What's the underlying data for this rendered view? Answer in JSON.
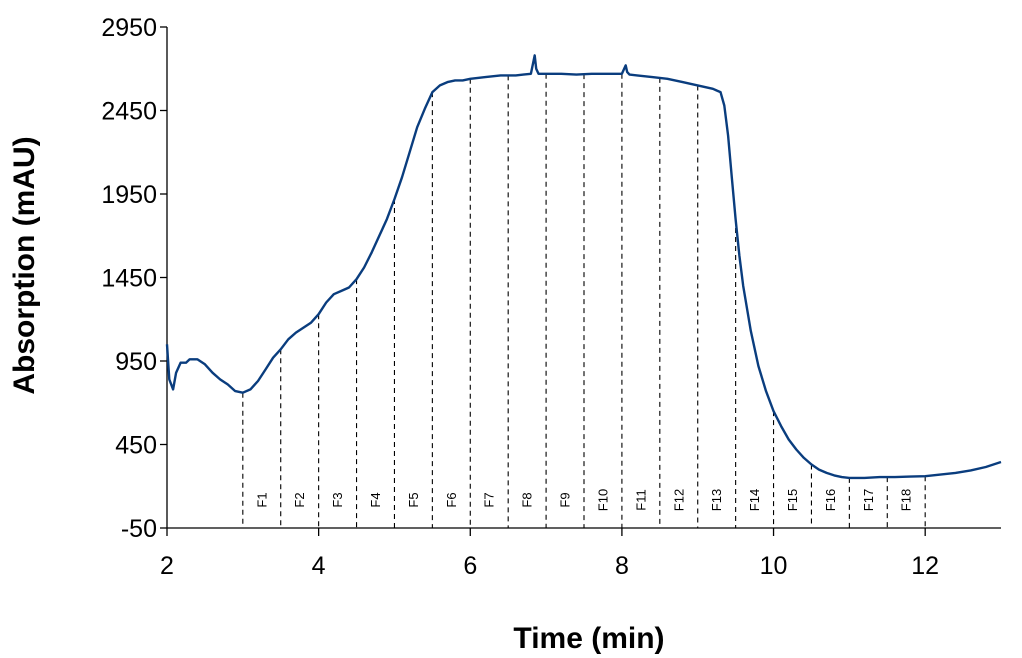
{
  "chart_data": {
    "type": "line",
    "title": "",
    "xlabel": "Time (min)",
    "ylabel": "Absorption (mAU)",
    "xlim": [
      2,
      13
    ],
    "ylim": [
      -50,
      2950
    ],
    "xticks": [
      2,
      4,
      6,
      8,
      10,
      12
    ],
    "yticks": [
      -50,
      450,
      950,
      1450,
      1950,
      2450,
      2950
    ],
    "grid": false,
    "color": "#0a3d7e",
    "series": [
      {
        "x": [
          2.0,
          2.03,
          2.08,
          2.12,
          2.18,
          2.25,
          2.3,
          2.4,
          2.5,
          2.6,
          2.7,
          2.8,
          2.9,
          3.0,
          3.1,
          3.2,
          3.3,
          3.4,
          3.5,
          3.6,
          3.7,
          3.8,
          3.9,
          4.0,
          4.1,
          4.2,
          4.3,
          4.4,
          4.5,
          4.6,
          4.7,
          4.8,
          4.9,
          5.0,
          5.1,
          5.2,
          5.3,
          5.4,
          5.5,
          5.6,
          5.7,
          5.8,
          5.9,
          6.0,
          6.2,
          6.4,
          6.5,
          6.6,
          6.7,
          6.8,
          6.85,
          6.87,
          6.9,
          7.0,
          7.2,
          7.4,
          7.6,
          7.8,
          8.0,
          8.05,
          8.07,
          8.1,
          8.2,
          8.4,
          8.6,
          8.8,
          9.0,
          9.2,
          9.25,
          9.3,
          9.35,
          9.4,
          9.45,
          9.5,
          9.55,
          9.6,
          9.7,
          9.8,
          9.9,
          10.0,
          10.1,
          10.2,
          10.3,
          10.4,
          10.5,
          10.6,
          10.7,
          10.8,
          10.9,
          11.0,
          11.2,
          11.4,
          11.6,
          11.8,
          12.0,
          12.2,
          12.4,
          12.6,
          12.8,
          13.0
        ],
        "y": [
          1050,
          840,
          780,
          880,
          940,
          940,
          960,
          960,
          930,
          880,
          840,
          810,
          770,
          760,
          780,
          830,
          900,
          970,
          1020,
          1080,
          1120,
          1150,
          1180,
          1230,
          1300,
          1350,
          1370,
          1390,
          1440,
          1510,
          1600,
          1700,
          1800,
          1920,
          2050,
          2200,
          2350,
          2460,
          2560,
          2600,
          2620,
          2630,
          2630,
          2640,
          2650,
          2660,
          2660,
          2660,
          2665,
          2670,
          2780,
          2700,
          2670,
          2670,
          2670,
          2665,
          2670,
          2670,
          2670,
          2720,
          2680,
          2665,
          2660,
          2650,
          2640,
          2620,
          2600,
          2580,
          2570,
          2560,
          2480,
          2300,
          2050,
          1800,
          1580,
          1400,
          1130,
          920,
          770,
          650,
          560,
          480,
          420,
          370,
          330,
          300,
          280,
          265,
          255,
          250,
          250,
          255,
          255,
          258,
          260,
          270,
          280,
          295,
          315,
          345
        ]
      }
    ],
    "fractions": {
      "labels": [
        "F1",
        "F2",
        "F3",
        "F4",
        "F5",
        "F6",
        "F7",
        "F8",
        "F9",
        "F10",
        "F11",
        "F12",
        "F13",
        "F14",
        "F15",
        "F16",
        "F17",
        "F18"
      ],
      "boundaries": [
        3.0,
        3.5,
        4.0,
        4.5,
        5.0,
        5.5,
        6.0,
        6.5,
        7.0,
        7.5,
        8.0,
        8.5,
        9.0,
        9.5,
        10.0,
        10.5,
        11.0,
        11.5,
        12.0
      ]
    }
  }
}
